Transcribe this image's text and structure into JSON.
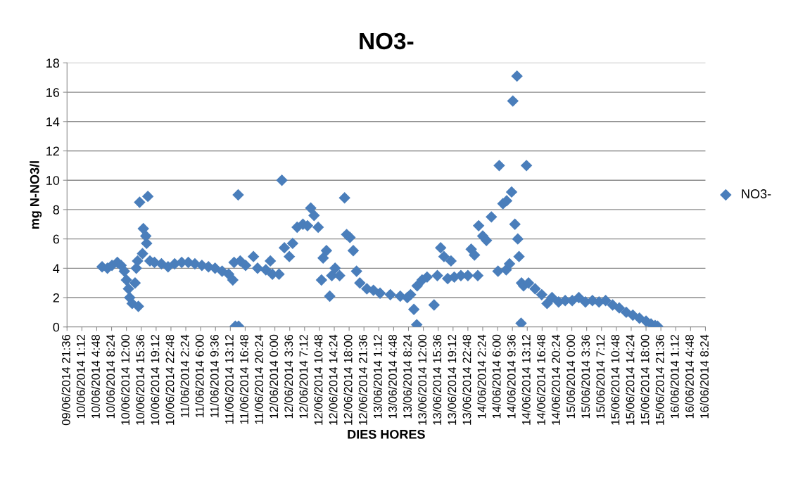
{
  "chart_data": {
    "type": "scatter",
    "title": "NO3-",
    "xlabel": "DIES HORES",
    "ylabel": "mg N-NO3/l",
    "x": [
      "2014-06-10T06:06",
      "2014-06-10T07:24",
      "2014-06-10T08:30",
      "2014-06-10T09:48",
      "2014-06-10T10:42",
      "2014-06-10T11:30",
      "2014-06-10T12:00",
      "2014-06-10T12:30",
      "2014-06-10T12:48",
      "2014-06-10T13:24",
      "2014-06-10T14:54",
      "2014-06-10T14:06",
      "2014-06-10T14:24",
      "2014-06-10T14:42",
      "2014-06-10T15:12",
      "2014-06-10T15:54",
      "2014-06-10T16:06",
      "2014-06-10T16:42",
      "2014-06-10T17:12",
      "2014-06-10T16:54",
      "2014-06-10T17:42",
      "2014-06-10T18:48",
      "2014-06-10T20:30",
      "2014-06-10T22:06",
      "2014-06-10T23:42",
      "2014-06-11T01:24",
      "2014-06-11T03:00",
      "2014-06-11T04:36",
      "2014-06-11T06:18",
      "2014-06-11T07:54",
      "2014-06-11T09:30",
      "2014-06-11T11:12",
      "2014-06-11T12:48",
      "2014-06-11T13:48",
      "2014-06-11T14:06",
      "2014-06-11T14:24",
      "2014-06-11T15:12",
      "2014-06-11T15:06",
      "2014-06-11T15:36",
      "2014-06-11T16:54",
      "2014-06-11T18:48",
      "2014-06-11T19:48",
      "2014-06-11T21:48",
      "2014-06-11T22:54",
      "2014-06-11T23:24",
      "2014-06-12T01:00",
      "2014-06-12T01:42",
      "2014-06-12T02:18",
      "2014-06-12T03:30",
      "2014-06-12T04:18",
      "2014-06-12T05:24",
      "2014-06-12T06:48",
      "2014-06-12T07:54",
      "2014-06-12T08:42",
      "2014-06-12T09:30",
      "2014-06-12T10:30",
      "2014-06-12T11:18",
      "2014-06-12T11:42",
      "2014-06-12T12:30",
      "2014-06-12T13:18",
      "2014-06-12T13:48",
      "2014-06-12T14:36",
      "2014-06-12T15:42",
      "2014-06-12T16:54",
      "2014-06-12T17:24",
      "2014-06-12T18:12",
      "2014-06-12T19:00",
      "2014-06-12T19:48",
      "2014-06-12T20:36",
      "2014-06-12T22:18",
      "2014-06-12T23:54",
      "2014-06-13T01:30",
      "2014-06-13T04:00",
      "2014-06-13T06:24",
      "2014-06-13T08:06",
      "2014-06-13T08:54",
      "2014-06-13T09:42",
      "2014-06-13T10:24",
      "2014-06-13T10:30",
      "2014-06-13T11:42",
      "2014-06-13T12:54",
      "2014-06-13T14:36",
      "2014-06-13T15:24",
      "2014-06-13T16:12",
      "2014-06-13T17:00",
      "2014-06-13T17:54",
      "2014-06-13T18:42",
      "2014-06-13T19:30",
      "2014-06-13T21:06",
      "2014-06-13T22:48",
      "2014-06-13T23:36",
      "2014-06-14T00:24",
      "2014-06-14T01:12",
      "2014-06-14T01:24",
      "2014-06-14T02:24",
      "2014-06-14T03:18",
      "2014-06-14T04:30",
      "2014-06-14T06:06",
      "2014-06-14T06:24",
      "2014-06-14T07:18",
      "2014-06-14T08:06",
      "2014-06-14T08:12",
      "2014-06-14T08:54",
      "2014-06-14T09:24",
      "2014-06-14T09:42",
      "2014-06-14T10:12",
      "2014-06-14T10:42",
      "2014-06-14T10:54",
      "2014-06-14T11:12",
      "2014-06-14T11:42",
      "2014-06-14T11:48",
      "2014-06-14T12:18",
      "2014-06-14T13:00",
      "2014-06-14T13:30",
      "2014-06-14T15:06",
      "2014-06-14T16:42",
      "2014-06-14T18:00",
      "2014-06-14T19:12",
      "2014-06-14T20:48",
      "2014-06-14T22:24",
      "2014-06-15T00:06",
      "2014-06-15T01:42",
      "2014-06-15T03:18",
      "2014-06-15T05:00",
      "2014-06-15T06:36",
      "2014-06-15T08:12",
      "2014-06-15T09:54",
      "2014-06-15T11:30",
      "2014-06-15T13:12",
      "2014-06-15T14:48",
      "2014-06-15T16:24",
      "2014-06-15T18:00",
      "2014-06-15T19:12",
      "2014-06-15T20:12",
      "2014-06-15T20:48"
    ],
    "series": [
      {
        "name": "NO3-",
        "color": "#4a7ebb",
        "values": [
          4.1,
          4.0,
          4.2,
          4.4,
          4.2,
          3.8,
          3.2,
          2.6,
          2.0,
          1.6,
          1.4,
          3.0,
          4.0,
          4.5,
          8.5,
          5.0,
          6.7,
          6.2,
          8.9,
          5.7,
          4.5,
          4.4,
          4.3,
          4.1,
          4.3,
          4.4,
          4.4,
          4.3,
          4.2,
          4.1,
          4.0,
          3.8,
          3.6,
          3.2,
          4.4,
          0.05,
          0.05,
          9.0,
          4.5,
          4.2,
          4.8,
          4.0,
          3.9,
          4.5,
          3.6,
          3.6,
          10.0,
          5.4,
          4.8,
          5.7,
          6.8,
          7.0,
          6.9,
          8.1,
          7.6,
          6.8,
          3.2,
          4.7,
          5.2,
          2.1,
          3.5,
          4.0,
          3.5,
          8.8,
          6.3,
          6.1,
          5.2,
          3.8,
          3.0,
          2.6,
          2.5,
          2.3,
          2.2,
          2.1,
          2.0,
          2.2,
          1.2,
          0.15,
          2.8,
          3.2,
          3.4,
          1.5,
          3.5,
          5.4,
          4.8,
          3.3,
          4.5,
          3.4,
          3.5,
          3.5,
          5.3,
          4.9,
          3.5,
          6.9,
          6.2,
          5.9,
          7.5,
          3.8,
          11.0,
          8.4,
          3.9,
          8.6,
          4.3,
          9.2,
          15.4,
          7.0,
          17.1,
          6.0,
          4.8,
          0.25,
          3.0,
          2.8,
          11.0,
          3.0,
          2.6,
          2.2,
          1.6,
          2.0,
          1.7,
          1.8,
          1.8,
          2.0,
          1.7,
          1.8,
          1.7,
          1.8,
          1.5,
          1.3,
          1.0,
          0.8,
          0.6,
          0.4,
          0.2,
          0.1,
          0.05
        ]
      }
    ],
    "xlim": [
      "2014-06-09T21:36",
      "2014-06-16T08:24"
    ],
    "xticks": [
      {
        "value": "2014-06-09T21:36",
        "label": "09/06/2014 21:36"
      },
      {
        "value": "2014-06-10T01:12",
        "label": "10/06/2014 1:12"
      },
      {
        "value": "2014-06-10T04:48",
        "label": "10/06/2014 4:48"
      },
      {
        "value": "2014-06-10T08:24",
        "label": "10/06/2014 8:24"
      },
      {
        "value": "2014-06-10T12:00",
        "label": "10/06/2014 12:00"
      },
      {
        "value": "2014-06-10T15:36",
        "label": "10/06/2014 15:36"
      },
      {
        "value": "2014-06-10T19:12",
        "label": "10/06/2014 19:12"
      },
      {
        "value": "2014-06-10T22:48",
        "label": "10/06/2014 22:48"
      },
      {
        "value": "2014-06-11T02:24",
        "label": "11/06/2014 2:24"
      },
      {
        "value": "2014-06-11T06:00",
        "label": "11/06/2014 6:00"
      },
      {
        "value": "2014-06-11T09:36",
        "label": "11/06/2014 9:36"
      },
      {
        "value": "2014-06-11T13:12",
        "label": "11/06/2014 13:12"
      },
      {
        "value": "2014-06-11T16:48",
        "label": "11/06/2014 16:48"
      },
      {
        "value": "2014-06-11T20:24",
        "label": "11/06/2014 20:24"
      },
      {
        "value": "2014-06-12T00:00",
        "label": "12/06/2014 0:00"
      },
      {
        "value": "2014-06-12T03:36",
        "label": "12/06/2014 3:36"
      },
      {
        "value": "2014-06-12T07:12",
        "label": "12/06/2014 7:12"
      },
      {
        "value": "2014-06-12T10:48",
        "label": "12/06/2014 10:48"
      },
      {
        "value": "2014-06-12T14:24",
        "label": "12/06/2014 14:24"
      },
      {
        "value": "2014-06-12T18:00",
        "label": "12/06/2014 18:00"
      },
      {
        "value": "2014-06-12T21:36",
        "label": "12/06/2014 21:36"
      },
      {
        "value": "2014-06-13T01:12",
        "label": "13/06/2014 1:12"
      },
      {
        "value": "2014-06-13T04:48",
        "label": "13/06/2014 4:48"
      },
      {
        "value": "2014-06-13T08:24",
        "label": "13/06/2014 8:24"
      },
      {
        "value": "2014-06-13T12:00",
        "label": "13/06/2014 12:00"
      },
      {
        "value": "2014-06-13T15:36",
        "label": "13/06/2014 15:36"
      },
      {
        "value": "2014-06-13T19:12",
        "label": "13/06/2014 19:12"
      },
      {
        "value": "2014-06-13T22:48",
        "label": "13/06/2014 22:48"
      },
      {
        "value": "2014-06-14T02:24",
        "label": "14/06/2014 2:24"
      },
      {
        "value": "2014-06-14T06:00",
        "label": "14/06/2014 6:00"
      },
      {
        "value": "2014-06-14T09:36",
        "label": "14/06/2014 9:36"
      },
      {
        "value": "2014-06-14T13:12",
        "label": "14/06/2014 13:12"
      },
      {
        "value": "2014-06-14T16:48",
        "label": "14/06/2014 16:48"
      },
      {
        "value": "2014-06-14T20:24",
        "label": "14/06/2014 20:24"
      },
      {
        "value": "2014-06-15T00:00",
        "label": "15/06/2014 0:00"
      },
      {
        "value": "2014-06-15T03:36",
        "label": "15/06/2014 3:36"
      },
      {
        "value": "2014-06-15T07:12",
        "label": "15/06/2014 7:12"
      },
      {
        "value": "2014-06-15T10:48",
        "label": "15/06/2014 10:48"
      },
      {
        "value": "2014-06-15T14:24",
        "label": "15/06/2014 14:24"
      },
      {
        "value": "2014-06-15T18:00",
        "label": "15/06/2014 18:00"
      },
      {
        "value": "2014-06-15T21:36",
        "label": "15/06/2014 21:36"
      },
      {
        "value": "2014-06-16T01:12",
        "label": "16/06/2014 1:12"
      },
      {
        "value": "2014-06-16T04:48",
        "label": "16/06/2014 4:48"
      },
      {
        "value": "2014-06-16T08:24",
        "label": "16/06/2014 8:24"
      }
    ],
    "ylim": [
      0,
      18
    ],
    "yticks": [
      0,
      2,
      4,
      6,
      8,
      10,
      12,
      14,
      16,
      18
    ],
    "grid": "y",
    "legend": "right",
    "marker": "diamond"
  }
}
